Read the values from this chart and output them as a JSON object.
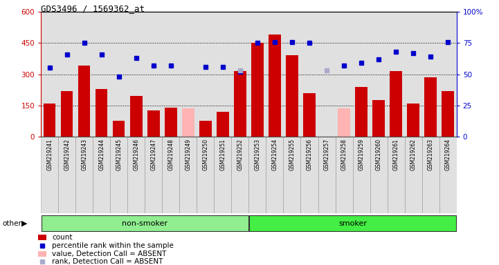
{
  "title": "GDS3496 / 1569362_at",
  "samples": [
    "GSM219241",
    "GSM219242",
    "GSM219243",
    "GSM219244",
    "GSM219245",
    "GSM219246",
    "GSM219247",
    "GSM219248",
    "GSM219249",
    "GSM219250",
    "GSM219251",
    "GSM219252",
    "GSM219253",
    "GSM219254",
    "GSM219255",
    "GSM219256",
    "GSM219257",
    "GSM219258",
    "GSM219259",
    "GSM219260",
    "GSM219261",
    "GSM219262",
    "GSM219263",
    "GSM219264"
  ],
  "count_values": [
    160,
    220,
    340,
    230,
    75,
    195,
    125,
    140,
    null,
    75,
    120,
    315,
    450,
    490,
    390,
    210,
    null,
    null,
    240,
    175,
    315,
    160,
    285,
    220
  ],
  "absent_value": [
    null,
    null,
    null,
    null,
    null,
    null,
    null,
    null,
    135,
    null,
    null,
    null,
    null,
    null,
    null,
    null,
    null,
    135,
    null,
    null,
    null,
    null,
    null,
    null
  ],
  "rank_pct": [
    55,
    66,
    75,
    66,
    48,
    63,
    57,
    57,
    null,
    56,
    56,
    52,
    75,
    76,
    76,
    75,
    null,
    57,
    59,
    62,
    68,
    67,
    64,
    76
  ],
  "absent_rank_pct": [
    null,
    null,
    null,
    null,
    null,
    null,
    null,
    null,
    null,
    null,
    null,
    53,
    null,
    null,
    null,
    null,
    53,
    null,
    null,
    null,
    null,
    null,
    null,
    null
  ],
  "group_defs": [
    {
      "start": 0,
      "end": 12,
      "color": "#90EE90",
      "label": "non-smoker"
    },
    {
      "start": 12,
      "end": 24,
      "color": "#44EE44",
      "label": "smoker"
    }
  ],
  "ylim_left": [
    0,
    600
  ],
  "ylim_right": [
    0,
    100
  ],
  "yticks_left": [
    0,
    150,
    300,
    450,
    600
  ],
  "yticks_right": [
    0,
    25,
    50,
    75,
    100
  ],
  "bar_color": "#CC0000",
  "absent_bar_color": "#FFB3B3",
  "rank_color": "#0000CC",
  "absent_rank_color": "#AAAACC",
  "col_bg_color": "#C8C8C8",
  "hgrid_values": [
    150,
    300,
    450
  ],
  "legend_items": [
    {
      "color": "#CC0000",
      "kind": "bar",
      "label": "count"
    },
    {
      "color": "#0000CC",
      "kind": "dot",
      "label": "percentile rank within the sample"
    },
    {
      "color": "#FFB3B3",
      "kind": "bar",
      "label": "value, Detection Call = ABSENT"
    },
    {
      "color": "#AAAACC",
      "kind": "dot",
      "label": "rank, Detection Call = ABSENT"
    }
  ]
}
